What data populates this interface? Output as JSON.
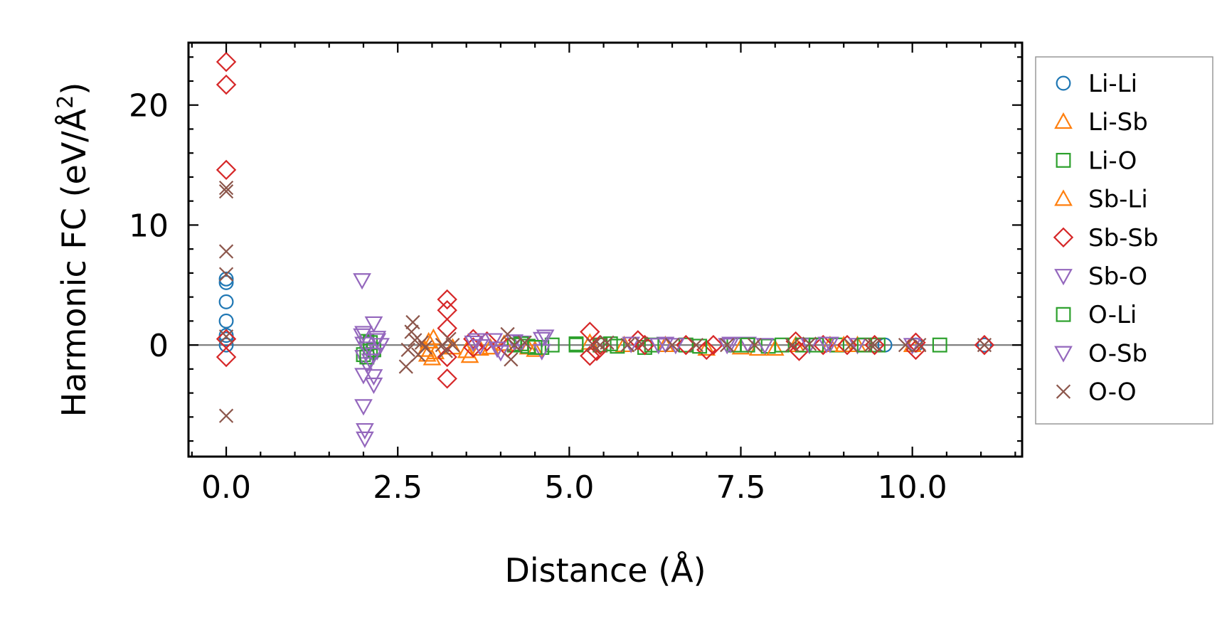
{
  "chart_data": {
    "type": "scatter",
    "xlabel": "Distance (Å)",
    "ylabel_main": "Harmonic FC (eV/Å",
    "ylabel_sup": "2",
    "ylabel_close": ")",
    "xlim": [
      -0.55,
      11.6
    ],
    "ylim": [
      -9.3,
      25.2
    ],
    "xticks": [
      0.0,
      2.5,
      5.0,
      7.5,
      10.0
    ],
    "xtick_labels": [
      "0.0",
      "2.5",
      "5.0",
      "7.5",
      "10.0"
    ],
    "yticks": [
      0,
      10,
      20
    ],
    "ytick_labels": [
      "0",
      "10",
      "20"
    ],
    "x_minor_step": 0.5,
    "y_minor_step": 2,
    "zero_line": true,
    "legend_position": "outside-right",
    "series": [
      {
        "name": "Li-Li",
        "marker": "circle",
        "color": "#1f77b4",
        "points": [
          [
            0,
            0
          ],
          [
            0,
            0.5
          ],
          [
            0,
            0.8
          ],
          [
            0,
            2.0
          ],
          [
            0,
            3.6
          ],
          [
            0,
            5.2
          ],
          [
            0,
            5.5
          ],
          [
            9.6,
            0
          ],
          [
            10.05,
            0
          ],
          [
            11.05,
            0
          ]
        ]
      },
      {
        "name": "Li-Sb",
        "marker": "triangle-up",
        "color": "#ff7f0e",
        "points": [
          [
            2.93,
            -0.8
          ],
          [
            2.95,
            0.3
          ],
          [
            3.0,
            -1.1
          ],
          [
            3.02,
            0.6
          ],
          [
            3.3,
            -0.2
          ],
          [
            3.55,
            -0.9
          ],
          [
            3.7,
            -0.3
          ],
          [
            4.05,
            0.1
          ],
          [
            4.4,
            -0.2
          ],
          [
            5.3,
            0.2
          ],
          [
            5.8,
            0
          ],
          [
            6.4,
            0
          ],
          [
            7.5,
            -0.2
          ],
          [
            7.75,
            -0.3
          ],
          [
            8.3,
            0
          ],
          [
            8.8,
            0
          ],
          [
            9.2,
            0
          ],
          [
            10.0,
            0
          ]
        ]
      },
      {
        "name": "Li-O",
        "marker": "square",
        "color": "#2ca02c",
        "points": [
          [
            2.0,
            -0.8
          ],
          [
            2.05,
            0.3
          ],
          [
            2.1,
            -0.5
          ],
          [
            4.2,
            0
          ],
          [
            4.4,
            -0.1
          ],
          [
            4.6,
            -0.2
          ],
          [
            4.75,
            0
          ],
          [
            5.1,
            0.1
          ],
          [
            5.45,
            0
          ],
          [
            5.7,
            -0.1
          ],
          [
            6.1,
            -0.2
          ],
          [
            6.7,
            0
          ],
          [
            7.4,
            0
          ],
          [
            7.9,
            -0.1
          ],
          [
            8.4,
            0
          ],
          [
            8.9,
            0
          ],
          [
            9.5,
            0
          ],
          [
            10.4,
            0
          ]
        ]
      },
      {
        "name": "Sb-Li",
        "marker": "triangle-up",
        "color": "#ff7f0e",
        "points": [
          [
            2.9,
            -0.4
          ],
          [
            3.05,
            -0.6
          ],
          [
            3.5,
            -0.5
          ],
          [
            3.85,
            -0.2
          ],
          [
            4.5,
            -0.4
          ],
          [
            7.0,
            -0.3
          ],
          [
            8.0,
            -0.3
          ],
          [
            9.0,
            0
          ]
        ]
      },
      {
        "name": "Sb-Sb",
        "marker": "diamond",
        "color": "#d62728",
        "points": [
          [
            0,
            23.6
          ],
          [
            0,
            21.7
          ],
          [
            0,
            14.6
          ],
          [
            0,
            -1.0
          ],
          [
            0,
            0.5
          ],
          [
            3.22,
            3.8
          ],
          [
            3.22,
            2.9
          ],
          [
            3.22,
            1.4
          ],
          [
            3.22,
            -1.0
          ],
          [
            3.22,
            -2.8
          ],
          [
            3.6,
            0.5
          ],
          [
            3.6,
            -0.2
          ],
          [
            3.8,
            0.3
          ],
          [
            4.1,
            -0.2
          ],
          [
            5.3,
            1.1
          ],
          [
            5.3,
            -0.9
          ],
          [
            5.4,
            -0.5
          ],
          [
            5.45,
            0
          ],
          [
            6.0,
            0.4
          ],
          [
            6.1,
            0
          ],
          [
            6.7,
            0
          ],
          [
            7.0,
            -0.4
          ],
          [
            7.1,
            0
          ],
          [
            8.3,
            0.3
          ],
          [
            8.35,
            -0.5
          ],
          [
            8.7,
            0
          ],
          [
            9.05,
            0
          ],
          [
            9.45,
            0
          ],
          [
            10.05,
            0.2
          ],
          [
            10.05,
            -0.4
          ],
          [
            11.05,
            0
          ]
        ]
      },
      {
        "name": "Sb-O",
        "marker": "triangle-down",
        "color": "#9467bd",
        "points": [
          [
            1.98,
            5.4
          ],
          [
            1.98,
            0.8
          ],
          [
            2.0,
            0.1
          ],
          [
            2.0,
            -1.0
          ],
          [
            2.0,
            -2.5
          ],
          [
            2.0,
            -5.1
          ],
          [
            2.02,
            -7.1
          ],
          [
            2.02,
            -7.8
          ],
          [
            2.05,
            -1.6
          ],
          [
            2.15,
            1.8
          ],
          [
            2.15,
            -2.6
          ],
          [
            2.15,
            -3.3
          ],
          [
            2.2,
            -0.5
          ],
          [
            2.2,
            0.6
          ],
          [
            3.6,
            0.2
          ],
          [
            3.7,
            -0.1
          ],
          [
            3.9,
            0.4
          ],
          [
            4.0,
            -0.6
          ],
          [
            4.3,
            0.2
          ],
          [
            4.6,
            0.5
          ],
          [
            4.6,
            -0.5
          ],
          [
            5.9,
            0.1
          ],
          [
            6.4,
            0.1
          ],
          [
            6.55,
            0
          ],
          [
            7.3,
            0
          ],
          [
            7.6,
            0.1
          ],
          [
            7.85,
            0
          ],
          [
            8.5,
            0
          ],
          [
            8.8,
            0.1
          ],
          [
            9.2,
            0
          ],
          [
            10.0,
            0
          ]
        ]
      },
      {
        "name": "O-Li",
        "marker": "square",
        "color": "#2ca02c",
        "points": [
          [
            2.05,
            -1.0
          ],
          [
            2.1,
            0.2
          ],
          [
            2.15,
            -0.4
          ],
          [
            4.3,
            0.1
          ],
          [
            4.5,
            -0.2
          ],
          [
            5.1,
            0
          ],
          [
            5.6,
            0.1
          ],
          [
            6.2,
            0
          ],
          [
            6.9,
            -0.1
          ],
          [
            7.6,
            0
          ],
          [
            8.1,
            0
          ],
          [
            8.6,
            0
          ],
          [
            9.3,
            0
          ]
        ]
      },
      {
        "name": "O-Sb",
        "marker": "triangle-down",
        "color": "#9467bd",
        "points": [
          [
            2.0,
            1.0
          ],
          [
            2.05,
            -0.3
          ],
          [
            2.1,
            -1.3
          ],
          [
            2.15,
            -0.8
          ],
          [
            2.2,
            0.4
          ],
          [
            2.25,
            0
          ],
          [
            3.65,
            0.4
          ],
          [
            3.95,
            -0.3
          ],
          [
            4.2,
            0.3
          ],
          [
            4.65,
            0.7
          ],
          [
            6.3,
            0
          ],
          [
            7.35,
            0.1
          ],
          [
            8.75,
            0.1
          ]
        ]
      },
      {
        "name": "O-O",
        "marker": "x",
        "color": "#8c564b",
        "points": [
          [
            0,
            13.1
          ],
          [
            0,
            12.8
          ],
          [
            0,
            7.8
          ],
          [
            0,
            5.9
          ],
          [
            0,
            0.7
          ],
          [
            0,
            -5.9
          ],
          [
            2.62,
            -1.8
          ],
          [
            2.65,
            -0.4
          ],
          [
            2.7,
            1.1
          ],
          [
            2.72,
            1.9
          ],
          [
            2.75,
            0.4
          ],
          [
            2.8,
            -0.8
          ],
          [
            2.85,
            0.2
          ],
          [
            2.9,
            -0.2
          ],
          [
            3.15,
            0
          ],
          [
            3.2,
            -0.5
          ],
          [
            3.25,
            0.5
          ],
          [
            3.3,
            0
          ],
          [
            4.1,
            0.9
          ],
          [
            4.15,
            -1.2
          ],
          [
            4.2,
            0
          ],
          [
            4.35,
            0.2
          ],
          [
            5.35,
            0
          ],
          [
            5.45,
            0
          ],
          [
            5.55,
            0.2
          ],
          [
            5.85,
            0
          ],
          [
            6.05,
            0.1
          ],
          [
            6.5,
            0
          ],
          [
            6.85,
            0
          ],
          [
            7.3,
            0
          ],
          [
            7.7,
            0
          ],
          [
            8.25,
            0
          ],
          [
            8.5,
            0.1
          ],
          [
            9.1,
            0
          ],
          [
            9.4,
            0
          ],
          [
            9.45,
            0
          ],
          [
            9.9,
            0
          ],
          [
            10.1,
            0
          ],
          [
            11.05,
            0
          ]
        ]
      }
    ]
  }
}
